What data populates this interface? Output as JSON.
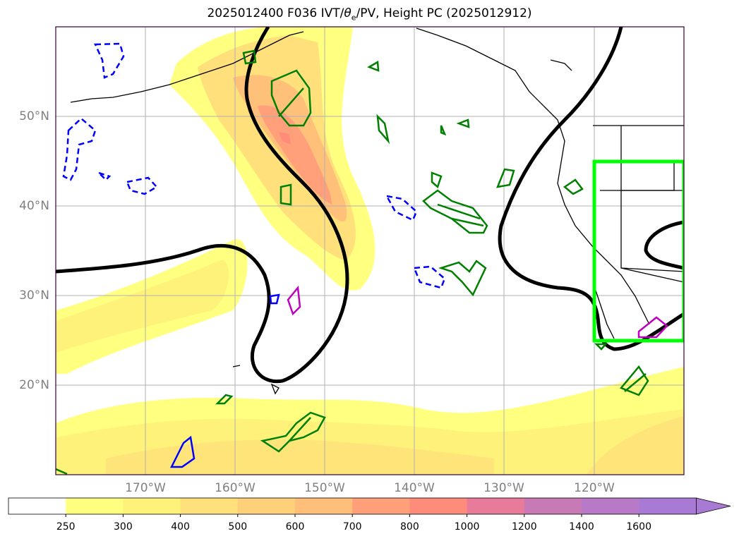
{
  "title": {
    "prefix": "2025012400 F036 IVT/",
    "theta_symbol": "θ",
    "theta_subscript": "e",
    "suffix": "/PV, Height PC (2025012912)"
  },
  "map": {
    "lon_labels": [
      "170°W",
      "160°W",
      "150°W",
      "140°W",
      "130°W",
      "120°W"
    ],
    "lat_labels": [
      "50°N",
      "40°N",
      "30°N",
      "20°N"
    ],
    "extent": {
      "lon_min": -180,
      "lon_max": -110,
      "lat_min": 10,
      "lat_max": 60
    },
    "gridlines": true,
    "highlight_box": {
      "lon_min": -120,
      "lon_max": -110,
      "lat_min": 25,
      "lat_max": 45,
      "color": "#00ff00"
    }
  },
  "colorbar": {
    "levels": [
      "250",
      "300",
      "400",
      "500",
      "600",
      "700",
      "800",
      "1000",
      "1200",
      "1400",
      "1600"
    ],
    "colors": [
      "#ffffff",
      "#ffff80",
      "#fff27a",
      "#ffe07a",
      "#ffd07a",
      "#ffbe7a",
      "#ffa07a",
      "#ff8c7a",
      "#e87a9a",
      "#c87ab6",
      "#b87ac6",
      "#a87ad4"
    ],
    "extend": "max"
  },
  "legend_colors": {
    "height_contour": "#000000",
    "pv_positive": "#008000",
    "pv_negative": "#0000ff",
    "theta_e": "#c000c0"
  }
}
